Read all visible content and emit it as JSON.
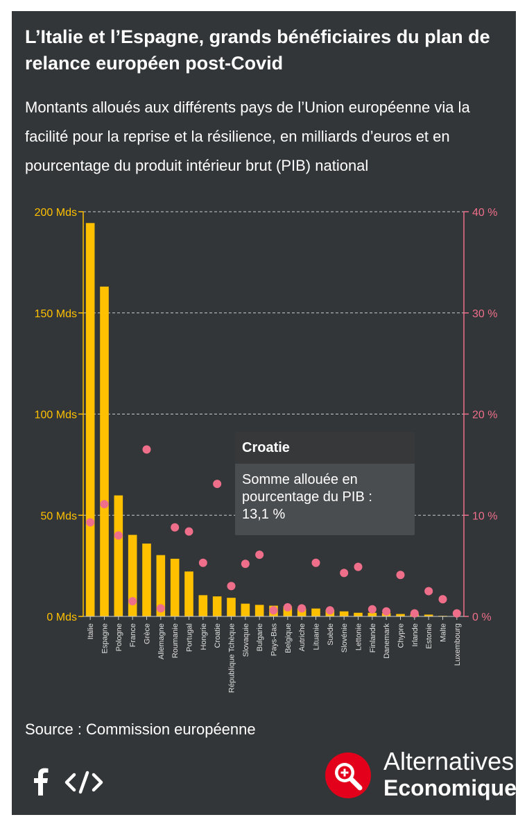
{
  "header": {
    "title": "L’Italie et l’Espagne, grands bénéficiaires du plan de relance européen post-Covid",
    "subtitle": "Montants alloués aux différents pays de l’Union européenne via la facilité pour la reprise et la résilience, en milliards d’euros et en pourcentage du produit intérieur brut (PIB) national"
  },
  "chart_data": {
    "type": "bar",
    "title": "L’Italie et l’Espagne, grands bénéficiaires du plan de relance européen post-Covid",
    "subtitle": "Montants alloués aux différents pays de l’Union européenne via la facilité pour la reprise et la résilience, en milliards d’euros et en pourcentage du produit intérieur brut (PIB) national",
    "categories": [
      "Italie",
      "Espagne",
      "Pologne",
      "France",
      "Grèce",
      "Allemagne",
      "Roumanie",
      "Portugal",
      "Hongrie",
      "Croatie",
      "République Tchèque",
      "Slovaquie",
      "Bulgarie",
      "Pays-Bas",
      "Belgique",
      "Autriche",
      "Lituanie",
      "Suède",
      "Slovénie",
      "Lettonie",
      "Finlande",
      "Danemark",
      "Chypre",
      "Irlande",
      "Estonie",
      "Malte",
      "Luxembourg"
    ],
    "series": [
      {
        "type": "bar",
        "axis": "left",
        "color": "#ffc000",
        "values": [
          194.4,
          163,
          59.8,
          40.3,
          36,
          30.3,
          28.5,
          22.2,
          10.5,
          9.9,
          9.2,
          6.3,
          5.7,
          5.3,
          5,
          3.9,
          3.9,
          3.3,
          2.5,
          1.8,
          1.8,
          1.6,
          1.2,
          1,
          0.9,
          0.3,
          0.1
        ]
      },
      {
        "type": "scatter",
        "axis": "right",
        "color": "#ef6f8b",
        "values": [
          9.3,
          11.1,
          8,
          1.5,
          16.5,
          0.8,
          8.8,
          8.4,
          5.3,
          13.1,
          3,
          5.2,
          6.1,
          0.6,
          0.9,
          0.8,
          5.3,
          0.6,
          4.3,
          4.9,
          0.7,
          0.5,
          4.1,
          0.3,
          2.5,
          1.7,
          0.3
        ]
      }
    ],
    "y_left": {
      "ticks": [
        0,
        50,
        100,
        150,
        200
      ],
      "tick_labels": [
        "0 Mds",
        "50 Mds",
        "100 Mds",
        "150 Mds",
        "200 Mds"
      ],
      "ylim": [
        0,
        200
      ],
      "color": "#ffc000"
    },
    "y_right": {
      "ticks": [
        0,
        10,
        20,
        30,
        40
      ],
      "tick_labels": [
        "0 %",
        "10 %",
        "20 %",
        "30 %",
        "40 %"
      ],
      "ylim": [
        0,
        40
      ],
      "color": "#ef6f8b"
    },
    "grid": true,
    "tooltip": {
      "category": "Croatie",
      "line1": "Somme allouée en",
      "line2": "pourcentage du PIB :",
      "line3": "13,1 %"
    }
  },
  "footer": {
    "source": "Source : Commission européenne",
    "icons": [
      "facebook-icon",
      "embed-code-icon"
    ],
    "brand_line1": "Alternatives",
    "brand_line2": "Economiques"
  }
}
